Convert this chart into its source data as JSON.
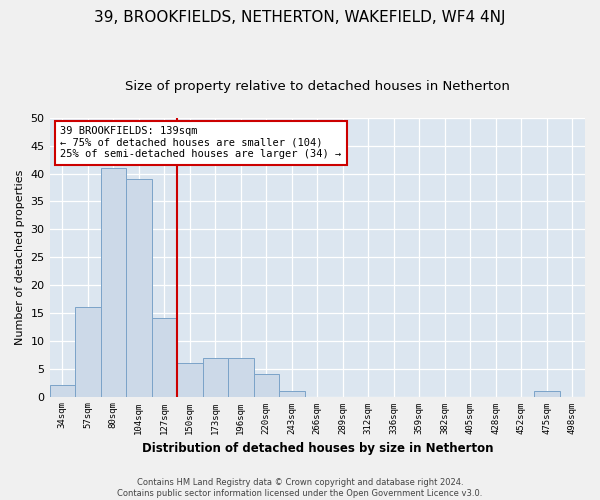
{
  "title": "39, BROOKFIELDS, NETHERTON, WAKEFIELD, WF4 4NJ",
  "subtitle": "Size of property relative to detached houses in Netherton",
  "xlabel": "Distribution of detached houses by size in Netherton",
  "ylabel": "Number of detached properties",
  "categories": [
    "34sqm",
    "57sqm",
    "80sqm",
    "104sqm",
    "127sqm",
    "150sqm",
    "173sqm",
    "196sqm",
    "220sqm",
    "243sqm",
    "266sqm",
    "289sqm",
    "312sqm",
    "336sqm",
    "359sqm",
    "382sqm",
    "405sqm",
    "428sqm",
    "452sqm",
    "475sqm",
    "498sqm"
  ],
  "values": [
    2,
    16,
    41,
    39,
    14,
    6,
    7,
    7,
    4,
    1,
    0,
    0,
    0,
    0,
    0,
    0,
    0,
    0,
    0,
    1,
    0
  ],
  "bar_color": "#ccd9e8",
  "bar_edge_color": "#7ba3c8",
  "vline_pos": 4.5,
  "annotation_lines": [
    "39 BROOKFIELDS: 139sqm",
    "← 75% of detached houses are smaller (104)",
    "25% of semi-detached houses are larger (34) →"
  ],
  "annotation_box_color": "#ffffff",
  "annotation_box_edge": "#cc0000",
  "ylim": [
    0,
    50
  ],
  "yticks": [
    0,
    5,
    10,
    15,
    20,
    25,
    30,
    35,
    40,
    45,
    50
  ],
  "background_color": "#dce6f0",
  "grid_color": "#ffffff",
  "title_fontsize": 11,
  "subtitle_fontsize": 9.5,
  "footer_text": "Contains HM Land Registry data © Crown copyright and database right 2024.\nContains public sector information licensed under the Open Government Licence v3.0.",
  "vline_color": "#cc0000"
}
